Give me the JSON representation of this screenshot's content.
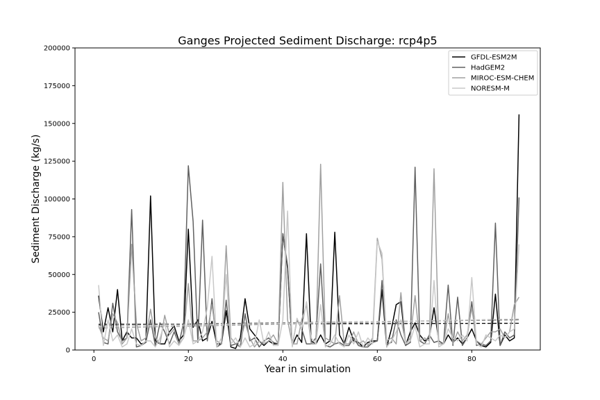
{
  "chart_data": {
    "type": "line",
    "title": "Ganges Projected Sediment Discharge: rcp4p5",
    "xlabel": "Year in simulation",
    "ylabel": "Sediment Discharge (kg/s)",
    "xlim": [
      -4,
      94.5
    ],
    "ylim": [
      0,
      200000
    ],
    "xticks": [
      0,
      20,
      40,
      60,
      80
    ],
    "yticks": [
      0,
      25000,
      50000,
      75000,
      100000,
      125000,
      150000,
      175000,
      200000
    ],
    "grid": false,
    "legend_position": "top-right",
    "x": [
      1,
      2,
      3,
      4,
      5,
      6,
      7,
      8,
      9,
      10,
      11,
      12,
      13,
      14,
      15,
      16,
      17,
      18,
      19,
      20,
      21,
      22,
      23,
      24,
      25,
      26,
      27,
      28,
      29,
      30,
      31,
      32,
      33,
      34,
      35,
      36,
      37,
      38,
      39,
      40,
      41,
      42,
      43,
      44,
      45,
      46,
      47,
      48,
      49,
      50,
      51,
      52,
      53,
      54,
      55,
      56,
      57,
      58,
      59,
      60,
      61,
      62,
      63,
      64,
      65,
      66,
      67,
      68,
      69,
      70,
      71,
      72,
      73,
      74,
      75,
      76,
      77,
      78,
      79,
      80,
      81,
      82,
      83,
      84,
      85,
      86,
      87,
      88,
      89,
      90
    ],
    "series": [
      {
        "name": "GFDL-ESM2M",
        "color": "#000000",
        "values": [
          36000,
          12000,
          28000,
          12000,
          40000,
          6000,
          12000,
          8000,
          8000,
          4000,
          5000,
          102000,
          6000,
          4000,
          4000,
          12000,
          16000,
          6000,
          10000,
          80000,
          15000,
          20000,
          6000,
          8000,
          19000,
          4000,
          4000,
          26000,
          2000,
          1000,
          8000,
          34000,
          14000,
          10000,
          6000,
          3000,
          6000,
          4000,
          4000,
          77000,
          54000,
          3000,
          10000,
          5000,
          77000,
          6000,
          4000,
          10000,
          4000,
          6000,
          78000,
          10000,
          4000,
          15000,
          6000,
          5000,
          2000,
          5000,
          6000,
          6000,
          40000,
          2000,
          14000,
          30000,
          32000,
          3000,
          12000,
          18000,
          10000,
          6000,
          8000,
          28000,
          6000,
          4000,
          10000,
          5000,
          8000,
          4000,
          8000,
          14000,
          6000,
          3000,
          2000,
          5000,
          37000,
          3000,
          10000,
          6000,
          8000,
          156000
        ],
        "trend": [
          17000,
          17700
        ]
      },
      {
        "name": "HadGEM2",
        "color": "#606060",
        "values": [
          25000,
          5000,
          4000,
          31000,
          12000,
          6000,
          8000,
          93000,
          2000,
          3000,
          5000,
          20000,
          3000,
          18000,
          12000,
          4000,
          12000,
          4000,
          18000,
          122000,
          85000,
          5000,
          86000,
          6000,
          34000,
          2000,
          4000,
          33000,
          3000,
          4000,
          2000,
          24000,
          6000,
          8000,
          2000,
          6000,
          8000,
          5000,
          4000,
          77000,
          56000,
          3000,
          20000,
          14000,
          4000,
          4000,
          8000,
          57000,
          3000,
          2000,
          4000,
          5000,
          3000,
          3000,
          8000,
          3000,
          2000,
          2000,
          5000,
          6000,
          46000,
          4000,
          5000,
          20000,
          10000,
          3000,
          5000,
          121000,
          6000,
          4000,
          10000,
          5000,
          6000,
          4000,
          43000,
          3000,
          35000,
          3000,
          8000,
          32000,
          3000,
          4000,
          3000,
          6000,
          84000,
          3000,
          12000,
          8000,
          10000,
          101000
        ],
        "trend": [
          16500,
          20000
        ]
      },
      {
        "name": "MIROC-ESM-CHEM",
        "color": "#a0a0a0",
        "values": [
          16000,
          8000,
          6000,
          24000,
          18000,
          4000,
          8000,
          70000,
          18000,
          6000,
          8000,
          27000,
          8000,
          4000,
          23000,
          10000,
          14000,
          4000,
          8000,
          44000,
          6000,
          6000,
          8000,
          12000,
          30000,
          6000,
          4000,
          69000,
          8000,
          4000,
          6000,
          18000,
          8000,
          2000,
          6000,
          4000,
          6000,
          10000,
          4000,
          111000,
          20000,
          4000,
          4000,
          20000,
          30000,
          4000,
          4000,
          123000,
          8000,
          6000,
          4000,
          36000,
          4000,
          4000,
          12000,
          4000,
          6000,
          3000,
          8000,
          74000,
          60000,
          6000,
          8000,
          4000,
          38000,
          4000,
          8000,
          36000,
          6000,
          8000,
          6000,
          120000,
          4000,
          4000,
          24000,
          4000,
          12000,
          6000,
          10000,
          28000,
          6000,
          4000,
          8000,
          12000,
          12000,
          14000,
          8000,
          12000,
          30000,
          35000
        ],
        "trend": [
          14500,
          20500
        ]
      },
      {
        "name": "NORESM-M",
        "color": "#c8c8c8",
        "values": [
          43000,
          3000,
          20000,
          6000,
          10000,
          2000,
          4000,
          14000,
          4000,
          3000,
          6000,
          6000,
          2000,
          8000,
          18000,
          2000,
          6000,
          3000,
          8000,
          20000,
          4000,
          6000,
          12000,
          28000,
          62000,
          2000,
          8000,
          50000,
          4000,
          8000,
          2000,
          8000,
          2000,
          4000,
          20000,
          4000,
          12000,
          3000,
          3000,
          20000,
          92000,
          2000,
          21000,
          14000,
          32000,
          8000,
          4000,
          30000,
          2000,
          4000,
          10000,
          4000,
          2000,
          10000,
          4000,
          12000,
          2000,
          8000,
          4000,
          72000,
          64000,
          2000,
          6000,
          12000,
          20000,
          4000,
          6000,
          16000,
          2000,
          4000,
          4000,
          46000,
          2000,
          4000,
          14000,
          8000,
          6000,
          10000,
          6000,
          48000,
          4000,
          2000,
          10000,
          8000,
          6000,
          10000,
          8000,
          12000,
          14000,
          70000
        ],
        "trend": [
          15500,
          20500
        ]
      }
    ]
  }
}
